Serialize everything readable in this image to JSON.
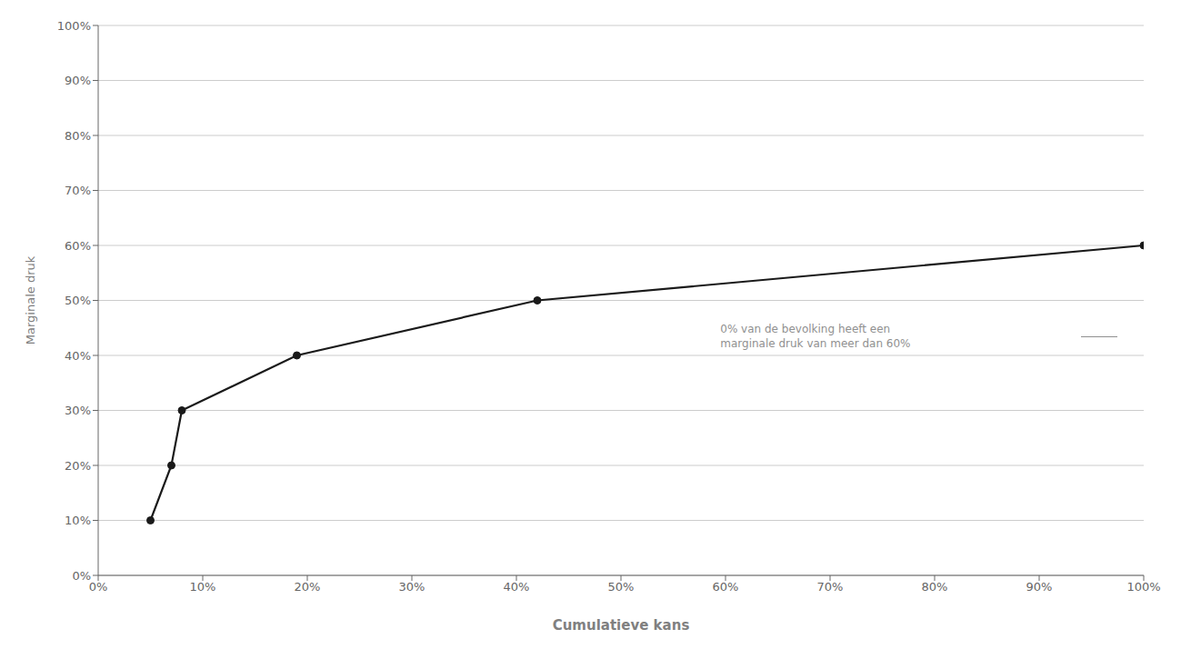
{
  "chart_data": {
    "type": "line",
    "x": [
      0.05,
      0.07,
      0.08,
      0.19,
      0.42,
      1.0
    ],
    "values": [
      0.1,
      0.2,
      0.3,
      0.4,
      0.5,
      0.6
    ],
    "color": "#1a1a1a",
    "marker": "circle",
    "xlabel": "Cumulatieve kans",
    "ylabel": "Marginale druk",
    "xlim": [
      0.0,
      1.0
    ],
    "ylim": [
      0.0,
      1.0
    ],
    "xticks": [
      {
        "value": 0.0,
        "label": "0%"
      },
      {
        "value": 0.1,
        "label": "10%"
      },
      {
        "value": 0.2,
        "label": "20%"
      },
      {
        "value": 0.3,
        "label": "30%"
      },
      {
        "value": 0.4,
        "label": "40%"
      },
      {
        "value": 0.5,
        "label": "50%"
      },
      {
        "value": 0.6,
        "label": "60%"
      },
      {
        "value": 0.7,
        "label": "70%"
      },
      {
        "value": 0.8,
        "label": "80%"
      },
      {
        "value": 0.9,
        "label": "90%"
      },
      {
        "value": 1.0,
        "label": "100%"
      }
    ],
    "yticks": [
      {
        "value": 0.0,
        "label": "0%"
      },
      {
        "value": 0.1,
        "label": "10%"
      },
      {
        "value": 0.2,
        "label": "20%"
      },
      {
        "value": 0.3,
        "label": "30%"
      },
      {
        "value": 0.4,
        "label": "40%"
      },
      {
        "value": 0.5,
        "label": "50%"
      },
      {
        "value": 0.6,
        "label": "60%"
      },
      {
        "value": 0.7,
        "label": "70%"
      },
      {
        "value": 0.8,
        "label": "80%"
      },
      {
        "value": 0.9,
        "label": "90%"
      },
      {
        "value": 1.0,
        "label": "100%"
      }
    ],
    "grid": true,
    "annotations": [
      "0% van de bevolking heeft een\nmarginale druk van meer dan 60%"
    ]
  }
}
